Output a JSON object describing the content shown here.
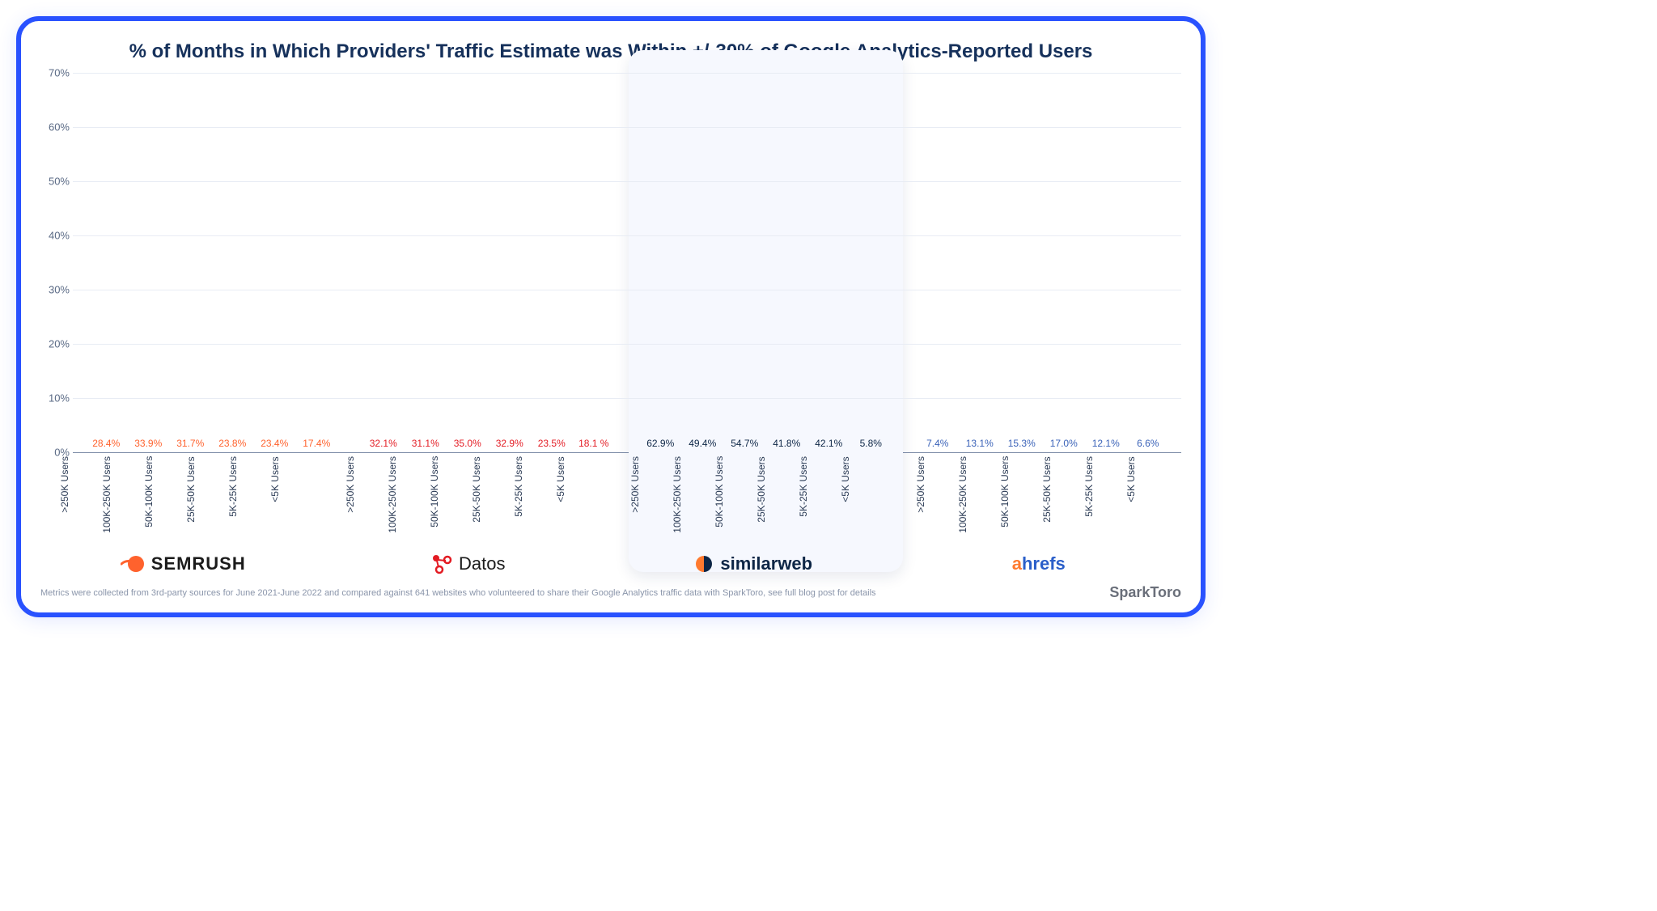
{
  "title": "% of Months in Which Providers' Traffic Estimate was Within +/-30% of Google Analytics-Reported Users",
  "chart": {
    "type": "bar-grouped",
    "ylim": [
      0,
      70
    ],
    "ytick_step": 10,
    "ytick_suffix": "%",
    "background_color": "#ffffff",
    "grid_color": "#e8ecf4",
    "axis_color": "#7b8aa6",
    "label_color": "#5a6a85",
    "title_color": "#16315b",
    "title_fontsize": 24,
    "value_label_fontsize": 12,
    "category_label_fontsize": 12,
    "categories": [
      ">250K Users",
      "100K-250K Users",
      "50K-100K Users",
      "25K-50K Users",
      "5K-25K Users",
      "<5K Users"
    ],
    "providers": [
      {
        "name": "SEMRUSH",
        "label_color": "#1b1b1b",
        "icon_color": "#ff622d",
        "bar_color": "#ff622d",
        "value_color": "#ff622d",
        "highlighted": false,
        "values": [
          28.4,
          33.9,
          31.7,
          23.8,
          23.4,
          17.4
        ]
      },
      {
        "name": "Datos",
        "label_color": "#1b1b1b",
        "icon_color": "#e31b23",
        "bar_color": "#e31b23",
        "value_color": "#e31b23",
        "highlighted": false,
        "values": [
          32.1,
          31.1,
          35.0,
          32.9,
          23.5,
          18.1
        ]
      },
      {
        "name": "similarweb",
        "label_color": "#0d2646",
        "icon_color": "#ff7a2f",
        "bar_color": "#0d2646",
        "value_color": "#0d2646",
        "highlighted": true,
        "highlight_bg": "#f6f8fe",
        "values": [
          62.9,
          49.4,
          54.7,
          41.8,
          42.1,
          5.8
        ]
      },
      {
        "name": "ahrefs",
        "label_color": "#2a5ec9",
        "icon_color": "#ff7a2f",
        "bar_color": "#3a62b8",
        "value_color": "#3a62b8",
        "highlighted": false,
        "values": [
          7.4,
          13.1,
          15.3,
          17.0,
          12.1,
          6.6
        ]
      }
    ]
  },
  "footnote": "Metrics were collected from 3rd-party sources for June 2021-June 2022 and compared against 641 websites who volunteered to share their Google Analytics traffic data with SparkToro, see full blog post for details",
  "attribution": "SparkToro",
  "frame_border_color": "#2952ff"
}
